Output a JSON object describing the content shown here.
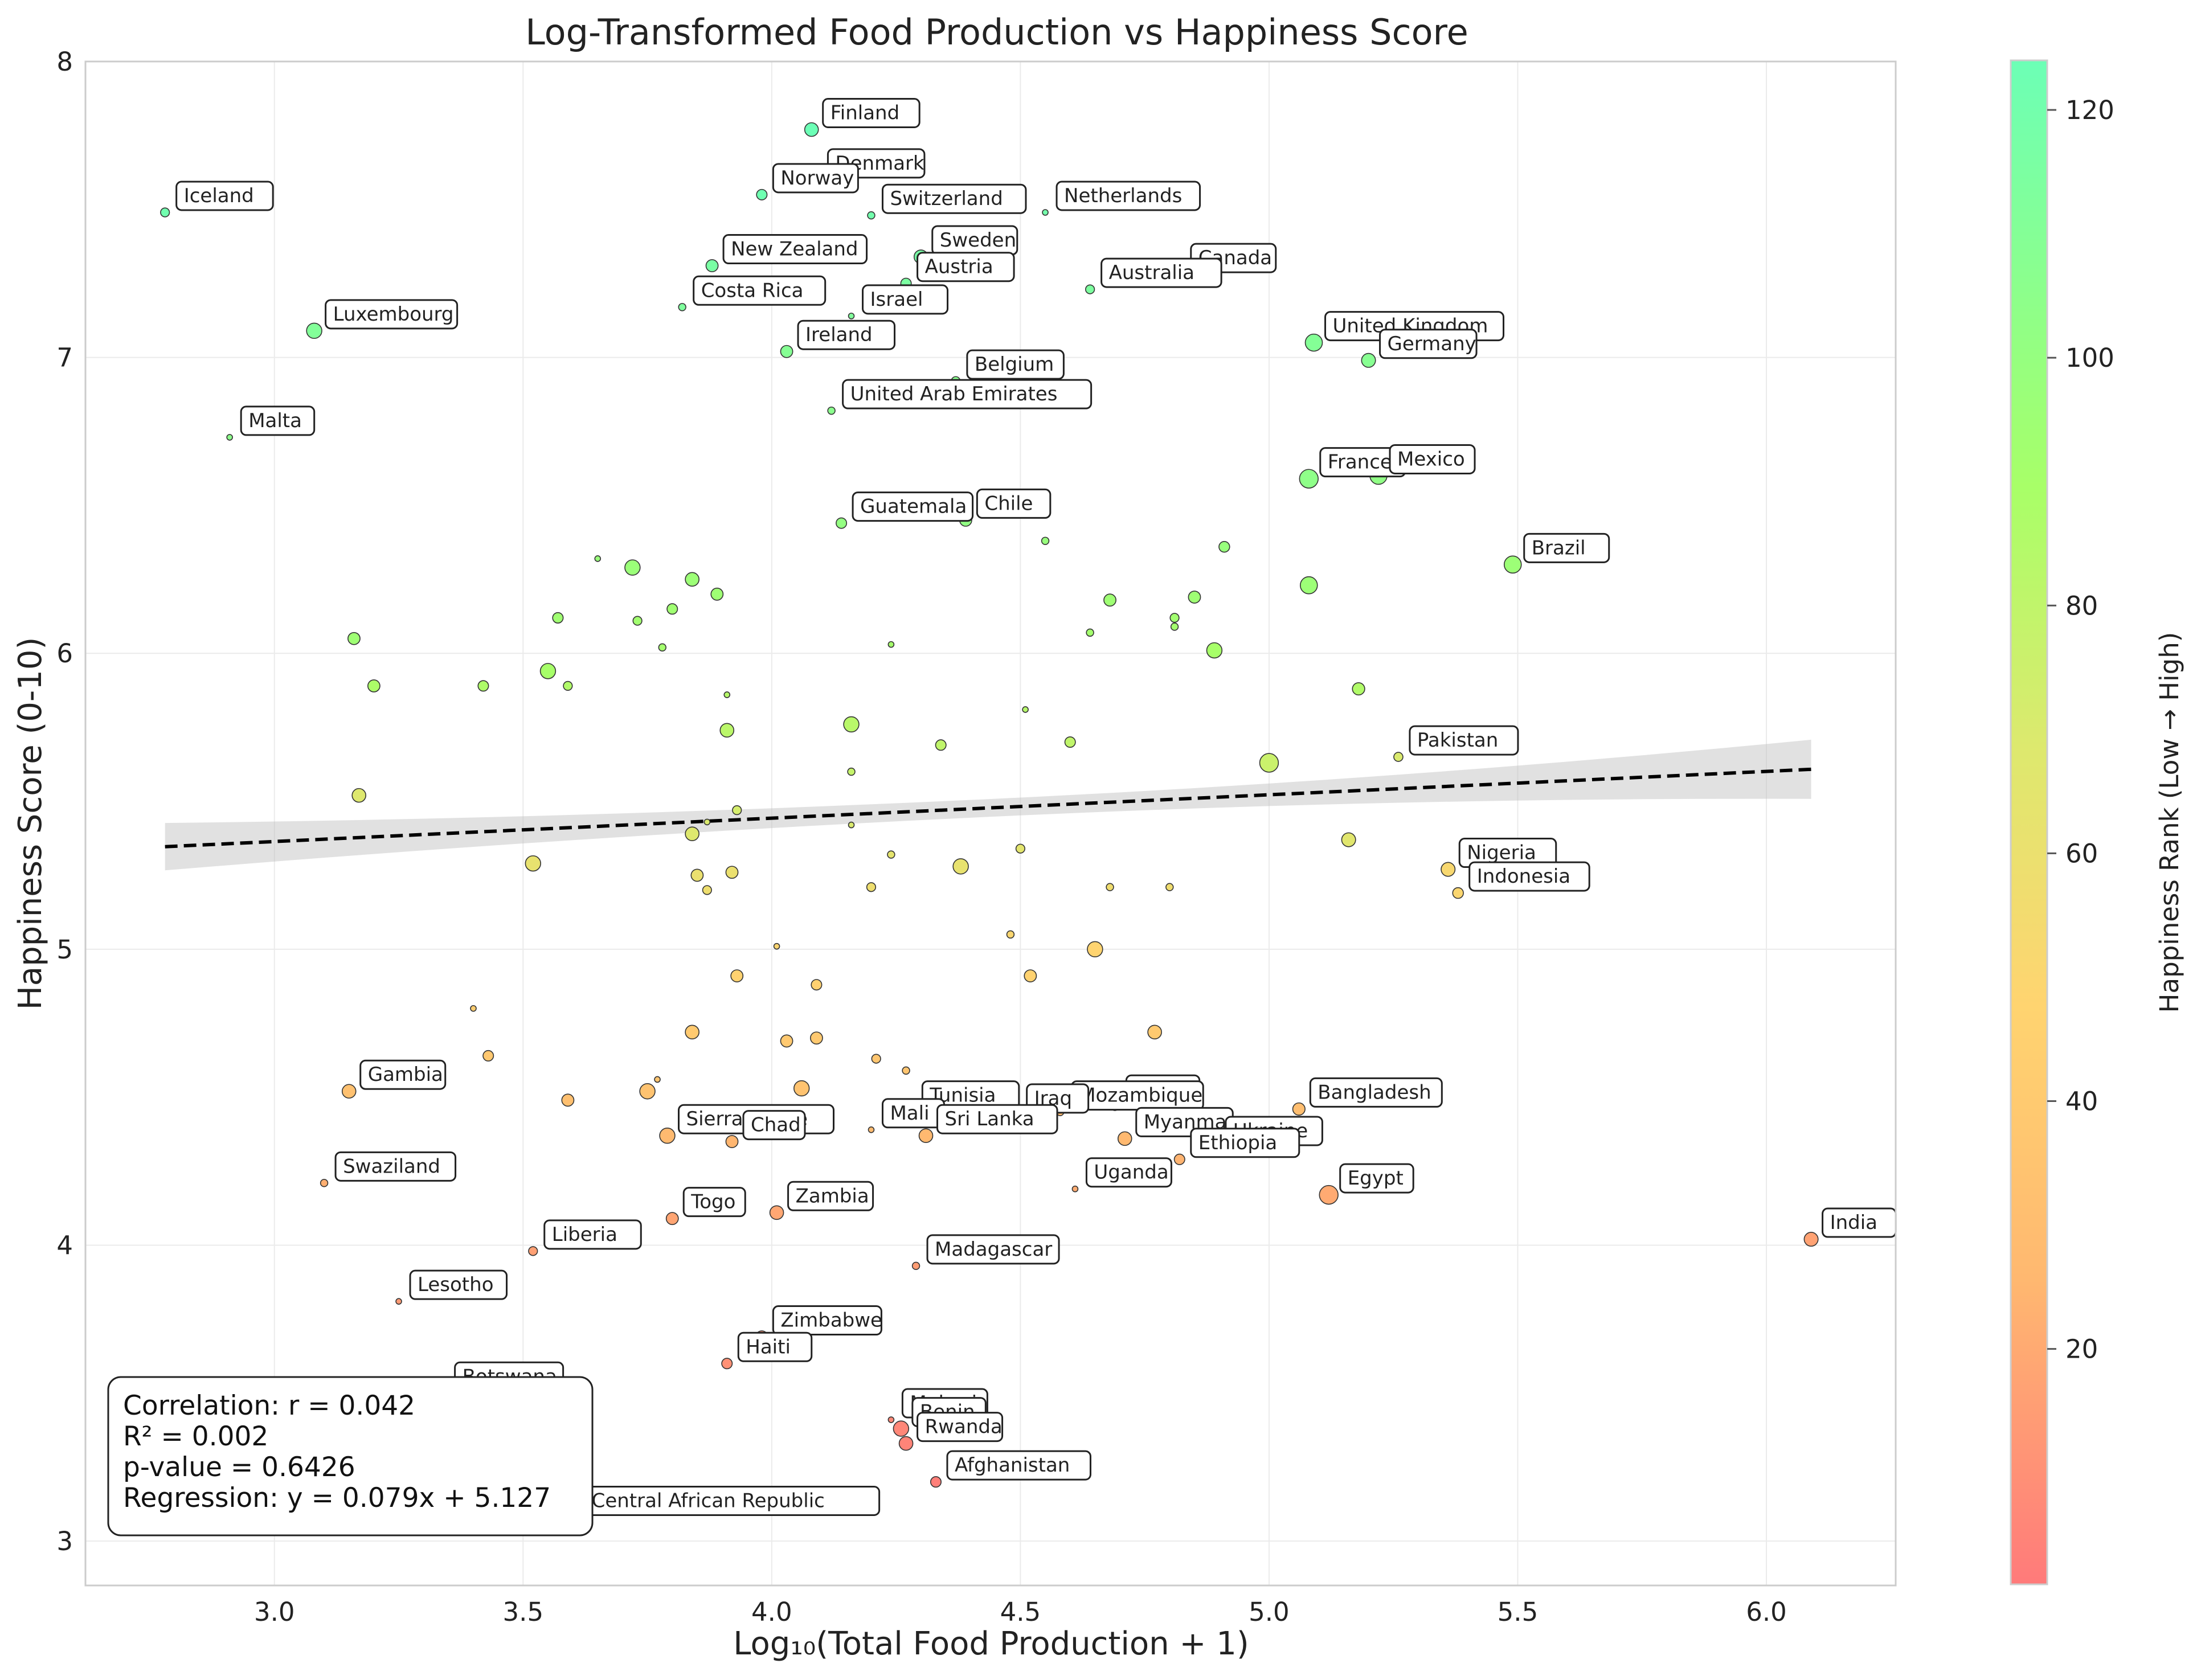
{
  "chart_data": {
    "type": "scatter",
    "title": "Log-Transformed Food Production vs Happiness Score",
    "xlabel": "Log₁₀(Total Food Production + 1)",
    "ylabel": "Happiness Score (0-10)",
    "xlim": [
      2.62,
      6.26
    ],
    "ylim": [
      2.85,
      8.0
    ],
    "xticks": [
      "3.0",
      "3.5",
      "4.0",
      "4.5",
      "5.0",
      "5.5",
      "6.0"
    ],
    "yticks": [
      "3",
      "4",
      "5",
      "6",
      "7",
      "8"
    ],
    "grid": true,
    "colorbar": {
      "label": "Happiness Rank (Low → High)",
      "range": [
        1,
        124
      ],
      "ticks": [
        "20",
        "40",
        "60",
        "80",
        "100",
        "120"
      ],
      "colors": [
        "#ff7a7a",
        "#ffb870",
        "#ffd470",
        "#dde96e",
        "#a8ff68",
        "#6cffb6"
      ]
    },
    "regression": {
      "slope": 0.079,
      "intercept": 5.127,
      "ci_halfwidth_left": 0.08,
      "ci_halfwidth_center": 0.03,
      "ci_halfwidth_right": 0.1
    },
    "stats": [
      "Correlation: r = 0.042",
      "R² = 0.002",
      "p-value = 0.6426",
      "Regression: y = 0.079x + 5.127"
    ],
    "labeled_points": [
      {
        "name": "Finland",
        "x": 4.08,
        "y": 7.77,
        "rank": 124
      },
      {
        "name": "Denmark",
        "x": 4.09,
        "y": 7.6,
        "rank": 123
      },
      {
        "name": "Norway",
        "x": 3.98,
        "y": 7.55,
        "rank": 122
      },
      {
        "name": "Iceland",
        "x": 2.78,
        "y": 7.49,
        "rank": 121
      },
      {
        "name": "Switzerland",
        "x": 4.2,
        "y": 7.48,
        "rank": 120
      },
      {
        "name": "Netherlands",
        "x": 4.55,
        "y": 7.49,
        "rank": 119
      },
      {
        "name": "Canada",
        "x": 4.82,
        "y": 7.28,
        "rank": 118
      },
      {
        "name": "Sweden",
        "x": 4.3,
        "y": 7.34,
        "rank": 117
      },
      {
        "name": "New Zealand",
        "x": 3.88,
        "y": 7.31,
        "rank": 116
      },
      {
        "name": "Austria",
        "x": 4.27,
        "y": 7.25,
        "rank": 115
      },
      {
        "name": "Australia",
        "x": 4.64,
        "y": 7.23,
        "rank": 114
      },
      {
        "name": "Costa Rica",
        "x": 3.82,
        "y": 7.17,
        "rank": 113
      },
      {
        "name": "Israel",
        "x": 4.16,
        "y": 7.14,
        "rank": 112
      },
      {
        "name": "Luxembourg",
        "x": 3.08,
        "y": 7.09,
        "rank": 111
      },
      {
        "name": "United Kingdom",
        "x": 5.09,
        "y": 7.05,
        "rank": 110
      },
      {
        "name": "Ireland",
        "x": 4.03,
        "y": 7.02,
        "rank": 109
      },
      {
        "name": "Germany",
        "x": 5.2,
        "y": 6.99,
        "rank": 108
      },
      {
        "name": "Belgium",
        "x": 4.37,
        "y": 6.92,
        "rank": 107
      },
      {
        "name": "United Arab Emirates",
        "x": 4.12,
        "y": 6.82,
        "rank": 106
      },
      {
        "name": "Malta",
        "x": 2.91,
        "y": 6.73,
        "rank": 105
      },
      {
        "name": "France",
        "x": 5.08,
        "y": 6.59,
        "rank": 104
      },
      {
        "name": "Mexico",
        "x": 5.22,
        "y": 6.6,
        "rank": 103
      },
      {
        "name": "Chile",
        "x": 4.39,
        "y": 6.45,
        "rank": 102
      },
      {
        "name": "Guatemala",
        "x": 4.14,
        "y": 6.44,
        "rank": 101
      },
      {
        "name": "Brazil",
        "x": 5.49,
        "y": 6.3,
        "rank": 96
      },
      {
        "name": "Pakistan",
        "x": 5.26,
        "y": 5.65,
        "rank": 70
      },
      {
        "name": "Nigeria",
        "x": 5.36,
        "y": 5.27,
        "rank": 52
      },
      {
        "name": "Indonesia",
        "x": 5.38,
        "y": 5.19,
        "rank": 50
      },
      {
        "name": "Gambia",
        "x": 3.15,
        "y": 4.52,
        "rank": 33
      },
      {
        "name": "Kenya",
        "x": 4.69,
        "y": 4.47,
        "rank": 30
      },
      {
        "name": "Bangladesh",
        "x": 5.06,
        "y": 4.46,
        "rank": 30
      },
      {
        "name": "Mozambique",
        "x": 4.58,
        "y": 4.45,
        "rank": 29
      },
      {
        "name": "Tunisia",
        "x": 4.28,
        "y": 4.45,
        "rank": 29
      },
      {
        "name": "Iraq",
        "x": 4.49,
        "y": 4.44,
        "rank": 28
      },
      {
        "name": "Mali",
        "x": 4.2,
        "y": 4.39,
        "rank": 28
      },
      {
        "name": "Sierra Leone",
        "x": 3.79,
        "y": 4.37,
        "rank": 27
      },
      {
        "name": "Sri Lanka",
        "x": 4.31,
        "y": 4.37,
        "rank": 26
      },
      {
        "name": "Myanmar",
        "x": 4.71,
        "y": 4.36,
        "rank": 26
      },
      {
        "name": "Chad",
        "x": 3.92,
        "y": 4.35,
        "rank": 25
      },
      {
        "name": "Ukraine",
        "x": 4.89,
        "y": 4.33,
        "rank": 25
      },
      {
        "name": "Ethiopia",
        "x": 4.82,
        "y": 4.29,
        "rank": 24
      },
      {
        "name": "Swaziland",
        "x": 3.1,
        "y": 4.21,
        "rank": 22
      },
      {
        "name": "Uganda",
        "x": 4.61,
        "y": 4.19,
        "rank": 21
      },
      {
        "name": "Egypt",
        "x": 5.12,
        "y": 4.17,
        "rank": 20
      },
      {
        "name": "Zambia",
        "x": 4.01,
        "y": 4.11,
        "rank": 19
      },
      {
        "name": "Togo",
        "x": 3.8,
        "y": 4.09,
        "rank": 18
      },
      {
        "name": "India",
        "x": 6.09,
        "y": 4.02,
        "rank": 17
      },
      {
        "name": "Liberia",
        "x": 3.52,
        "y": 3.98,
        "rank": 16
      },
      {
        "name": "Madagascar",
        "x": 4.29,
        "y": 3.93,
        "rank": 15
      },
      {
        "name": "Lesotho",
        "x": 3.25,
        "y": 3.81,
        "rank": 14
      },
      {
        "name": "Zimbabwe",
        "x": 3.98,
        "y": 3.69,
        "rank": 11
      },
      {
        "name": "Haiti",
        "x": 3.91,
        "y": 3.6,
        "rank": 10
      },
      {
        "name": "Botswana",
        "x": 3.34,
        "y": 3.5,
        "rank": 8
      },
      {
        "name": "Malawi",
        "x": 4.24,
        "y": 3.41,
        "rank": 7
      },
      {
        "name": "Benin",
        "x": 4.26,
        "y": 3.38,
        "rank": 6
      },
      {
        "name": "Rwanda",
        "x": 4.27,
        "y": 3.33,
        "rank": 5
      },
      {
        "name": "Afghanistan",
        "x": 4.33,
        "y": 3.2,
        "rank": 3
      },
      {
        "name": "Central African Republic",
        "x": 3.6,
        "y": 3.08,
        "rank": 1
      }
    ],
    "unlabeled_points": [
      {
        "x": 3.16,
        "y": 6.05,
        "rank": 95
      },
      {
        "x": 3.2,
        "y": 5.89,
        "rank": 88
      },
      {
        "x": 3.17,
        "y": 5.52,
        "rank": 68
      },
      {
        "x": 3.42,
        "y": 5.89,
        "rank": 87
      },
      {
        "x": 3.55,
        "y": 5.94,
        "rank": 90
      },
      {
        "x": 3.57,
        "y": 6.12,
        "rank": 94
      },
      {
        "x": 3.59,
        "y": 5.89,
        "rank": 86
      },
      {
        "x": 3.65,
        "y": 6.32,
        "rank": 98
      },
      {
        "x": 3.72,
        "y": 6.29,
        "rank": 97
      },
      {
        "x": 3.73,
        "y": 6.11,
        "rank": 93
      },
      {
        "x": 3.78,
        "y": 6.02,
        "rank": 92
      },
      {
        "x": 3.8,
        "y": 6.15,
        "rank": 94
      },
      {
        "x": 3.84,
        "y": 6.25,
        "rank": 96
      },
      {
        "x": 3.89,
        "y": 6.2,
        "rank": 95
      },
      {
        "x": 3.91,
        "y": 5.86,
        "rank": 84
      },
      {
        "x": 3.91,
        "y": 5.74,
        "rank": 82
      },
      {
        "x": 3.93,
        "y": 5.47,
        "rank": 72
      },
      {
        "x": 3.87,
        "y": 5.43,
        "rank": 70
      },
      {
        "x": 3.84,
        "y": 5.39,
        "rank": 68
      },
      {
        "x": 3.52,
        "y": 5.29,
        "rank": 62
      },
      {
        "x": 3.85,
        "y": 5.25,
        "rank": 60
      },
      {
        "x": 3.87,
        "y": 5.2,
        "rank": 58
      },
      {
        "x": 3.92,
        "y": 5.26,
        "rank": 60
      },
      {
        "x": 4.16,
        "y": 5.76,
        "rank": 83
      },
      {
        "x": 4.16,
        "y": 5.6,
        "rank": 78
      },
      {
        "x": 4.16,
        "y": 5.42,
        "rank": 70
      },
      {
        "x": 4.24,
        "y": 6.03,
        "rank": 91
      },
      {
        "x": 4.24,
        "y": 5.32,
        "rank": 64
      },
      {
        "x": 4.2,
        "y": 5.21,
        "rank": 58
      },
      {
        "x": 4.34,
        "y": 5.69,
        "rank": 80
      },
      {
        "x": 4.38,
        "y": 5.28,
        "rank": 62
      },
      {
        "x": 4.5,
        "y": 5.34,
        "rank": 65
      },
      {
        "x": 4.51,
        "y": 5.81,
        "rank": 84
      },
      {
        "x": 4.55,
        "y": 6.38,
        "rank": 99
      },
      {
        "x": 4.6,
        "y": 5.7,
        "rank": 80
      },
      {
        "x": 4.64,
        "y": 6.07,
        "rank": 92
      },
      {
        "x": 4.68,
        "y": 6.18,
        "rank": 95
      },
      {
        "x": 4.68,
        "y": 5.21,
        "rank": 57
      },
      {
        "x": 4.8,
        "y": 5.21,
        "rank": 57
      },
      {
        "x": 4.81,
        "y": 6.12,
        "rank": 93
      },
      {
        "x": 4.81,
        "y": 6.09,
        "rank": 92
      },
      {
        "x": 4.85,
        "y": 6.19,
        "rank": 95
      },
      {
        "x": 4.89,
        "y": 6.01,
        "rank": 90
      },
      {
        "x": 4.91,
        "y": 6.36,
        "rank": 99
      },
      {
        "x": 5.0,
        "y": 5.63,
        "rank": 76
      },
      {
        "x": 5.08,
        "y": 6.23,
        "rank": 96
      },
      {
        "x": 5.16,
        "y": 5.37,
        "rank": 66
      },
      {
        "x": 5.18,
        "y": 5.88,
        "rank": 86
      },
      {
        "x": 4.01,
        "y": 5.01,
        "rank": 49
      },
      {
        "x": 3.93,
        "y": 4.91,
        "rank": 46
      },
      {
        "x": 4.09,
        "y": 4.88,
        "rank": 45
      },
      {
        "x": 4.48,
        "y": 5.05,
        "rank": 50
      },
      {
        "x": 4.52,
        "y": 4.91,
        "rank": 46
      },
      {
        "x": 4.65,
        "y": 5.0,
        "rank": 48
      },
      {
        "x": 3.4,
        "y": 4.8,
        "rank": 42
      },
      {
        "x": 3.43,
        "y": 4.64,
        "rank": 38
      },
      {
        "x": 3.84,
        "y": 4.72,
        "rank": 40
      },
      {
        "x": 4.03,
        "y": 4.69,
        "rank": 39
      },
      {
        "x": 4.09,
        "y": 4.7,
        "rank": 39
      },
      {
        "x": 4.21,
        "y": 4.63,
        "rank": 37
      },
      {
        "x": 4.77,
        "y": 4.72,
        "rank": 40
      },
      {
        "x": 3.77,
        "y": 4.56,
        "rank": 35
      },
      {
        "x": 3.75,
        "y": 4.52,
        "rank": 34
      },
      {
        "x": 4.06,
        "y": 4.53,
        "rank": 34
      },
      {
        "x": 3.59,
        "y": 4.49,
        "rank": 32
      },
      {
        "x": 4.27,
        "y": 4.59,
        "rank": 36
      }
    ]
  }
}
